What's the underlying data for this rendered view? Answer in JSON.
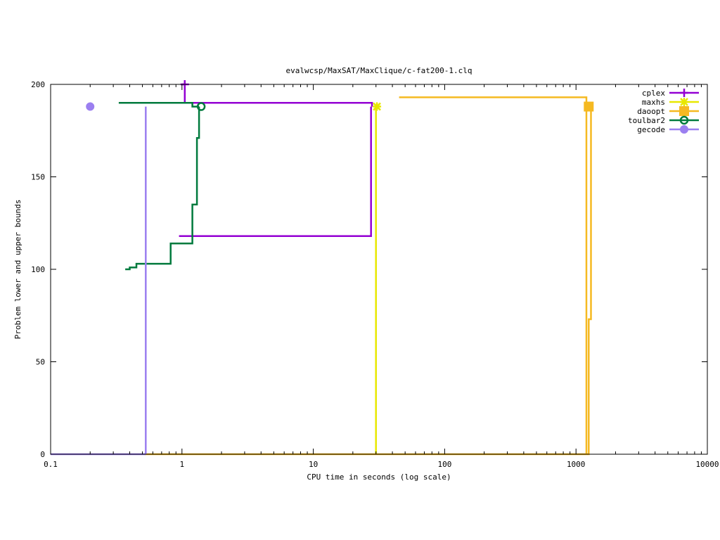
{
  "chart_data": {
    "type": "line",
    "title": "evalwcsp/MaxSAT/MaxClique/c-fat200-1.clq",
    "xlabel": "CPU time in seconds (log scale)",
    "ylabel": "Problem lower and upper bounds",
    "xscale": "log",
    "xlim": [
      0.1,
      10000
    ],
    "ylim": [
      0,
      200
    ],
    "xticks": [
      {
        "v": 0.1,
        "label": "0.1"
      },
      {
        "v": 1,
        "label": "1"
      },
      {
        "v": 10,
        "label": "10"
      },
      {
        "v": 100,
        "label": "100"
      },
      {
        "v": 1000,
        "label": "1000"
      },
      {
        "v": 10000,
        "label": "10000"
      }
    ],
    "yticks": [
      {
        "v": 0,
        "label": "0"
      },
      {
        "v": 50,
        "label": "50"
      },
      {
        "v": 100,
        "label": "100"
      },
      {
        "v": 150,
        "label": "150"
      },
      {
        "v": 200,
        "label": "200"
      }
    ],
    "grid": false,
    "legend": "top-right",
    "series": [
      {
        "name": "cplex",
        "color": "#9400d3",
        "marker": "plus",
        "point": [
          1.05,
          200
        ],
        "upper": [
          [
            1.0,
            200
          ],
          [
            1.05,
            200
          ],
          [
            1.05,
            190
          ],
          [
            28,
            190
          ],
          [
            28,
            188
          ]
        ],
        "lower": [
          [
            0.95,
            118
          ],
          [
            27.5,
            118
          ],
          [
            27.5,
            188
          ]
        ]
      },
      {
        "name": "maxhs",
        "color": "#e8e800",
        "marker": "star",
        "point": [
          30.5,
          188
        ],
        "upper": [
          [
            30,
            188
          ],
          [
            30,
            0
          ]
        ],
        "lower": []
      },
      {
        "name": "daoopt",
        "color": "#f5b921",
        "marker": "square",
        "point": [
          1250,
          188
        ],
        "upper": [
          [
            45,
            193
          ],
          [
            1200,
            193
          ],
          [
            1200,
            0
          ]
        ],
        "lower": [
          [
            0.52,
            0
          ],
          [
            1200,
            0
          ],
          [
            1200,
            0
          ],
          [
            1250,
            0
          ],
          [
            1250,
            73
          ],
          [
            1300,
            73
          ],
          [
            1300,
            188
          ]
        ]
      },
      {
        "name": "toulbar2",
        "color": "#007a3d",
        "marker": "circle-open",
        "point": [
          1.4,
          188
        ],
        "upper": [
          [
            0.33,
            190
          ],
          [
            1.2,
            190
          ],
          [
            1.2,
            188
          ],
          [
            1.35,
            188
          ]
        ],
        "lower": [
          [
            0.37,
            100
          ],
          [
            0.4,
            100
          ],
          [
            0.4,
            101
          ],
          [
            0.45,
            101
          ],
          [
            0.45,
            103
          ],
          [
            0.82,
            103
          ],
          [
            0.82,
            114
          ],
          [
            1.2,
            114
          ],
          [
            1.2,
            135
          ],
          [
            1.3,
            135
          ],
          [
            1.3,
            171
          ],
          [
            1.35,
            171
          ],
          [
            1.35,
            188
          ]
        ]
      },
      {
        "name": "gecode",
        "color": "#9b7ff0",
        "marker": "circle-filled",
        "point": [
          0.2,
          188
        ],
        "upper": [
          [
            0.53,
            188
          ],
          [
            0.53,
            0
          ]
        ],
        "lower": [
          [
            0.1,
            0
          ],
          [
            0.53,
            0
          ]
        ]
      }
    ]
  }
}
